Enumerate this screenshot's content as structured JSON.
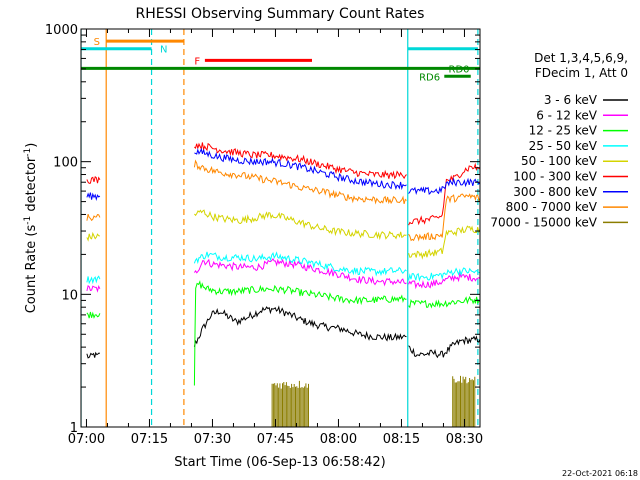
{
  "chart_data": {
    "type": "line",
    "title": "RHESSI Observing Summary Count Rates",
    "xlabel": "Start Time (06-Sep-13 06:58:42)",
    "ylabel_main": "Count Rate (s",
    "ylabel_sup1": "-1",
    "ylabel_mid": " detector",
    "ylabel_sup2": "-1",
    "ylabel_end": ")",
    "y_scale": "log",
    "ylim": [
      1,
      1000
    ],
    "xlim_minutes": [
      0,
      95
    ],
    "x_ticks": [
      {
        "m": 1.3,
        "label": "07:00"
      },
      {
        "m": 16.3,
        "label": "07:15"
      },
      {
        "m": 31.3,
        "label": "07:30"
      },
      {
        "m": 46.3,
        "label": "07:45"
      },
      {
        "m": 61.3,
        "label": "08:00"
      },
      {
        "m": 76.3,
        "label": "08:15"
      },
      {
        "m": 91.3,
        "label": "08:30"
      }
    ],
    "y_ticks": [
      {
        "v": 1,
        "label": "1"
      },
      {
        "v": 10,
        "label": "10"
      },
      {
        "v": 100,
        "label": "100"
      },
      {
        "v": 1000,
        "label": "1000"
      }
    ],
    "legend": {
      "header1": "Det 1,3,4,5,6,9,",
      "header2": "FDecim 1, Att 0"
    },
    "footer_date": "22-Oct-2021 06:18",
    "night_vlines": [
      {
        "m": 0,
        "color": "#00d8d8",
        "style": "solid"
      },
      {
        "m": 6,
        "color": "#ff8800",
        "style": "solid"
      },
      {
        "m": 16.8,
        "color": "#00d8d8",
        "style": "dash"
      },
      {
        "m": 24.5,
        "color": "#ff8800",
        "style": "dash"
      },
      {
        "m": 77.8,
        "color": "#00d8d8",
        "style": "solid"
      },
      {
        "m": 94.5,
        "color": "#00d8d8",
        "style": "dash"
      }
    ],
    "flags": [
      {
        "label": "S",
        "color": "#ff8800",
        "m0": 6,
        "m1": 24.5,
        "y": 810,
        "label_m": 3.0
      },
      {
        "label": "N",
        "color": "#00d8d8",
        "m0": 0,
        "m1": 16.8,
        "y": 710,
        "label_m": 18.8
      },
      {
        "label": "F",
        "color": "#ff0000",
        "m0": 29.5,
        "m1": 55.0,
        "y": 580,
        "label_m": 27.0
      },
      {
        "label": "RD0",
        "color": "#008800",
        "m0": 0,
        "m1": 95,
        "y": 505,
        "label_m": 87.5
      },
      {
        "label": "RD6",
        "color": "#008800",
        "m0": 86.5,
        "m1": 92.8,
        "y": 440,
        "label_m": 80.5
      }
    ],
    "flag_cyan_right": {
      "color": "#00d8d8",
      "m0": 77.8,
      "m1": 94.5,
      "y": 710
    },
    "series": [
      {
        "name": "3 - 6 keV",
        "color": "#000000",
        "segments": [
          [
            [
              1.4,
              3.5
            ],
            [
              2,
              3.3
            ],
            [
              3,
              3.5
            ],
            [
              4,
              3.4
            ],
            [
              4.5,
              3.6
            ]
          ],
          [
            [
              27,
              4.1
            ],
            [
              29,
              5.5
            ],
            [
              31,
              7.0
            ],
            [
              33,
              7.5
            ],
            [
              35,
              6.8
            ],
            [
              37,
              6.2
            ],
            [
              40,
              6.8
            ],
            [
              43,
              7.6
            ],
            [
              46,
              7.8
            ],
            [
              49,
              7.2
            ],
            [
              52,
              6.5
            ],
            [
              55,
              6.0
            ],
            [
              58,
              5.7
            ],
            [
              62,
              5.5
            ],
            [
              66,
              5.0
            ],
            [
              70,
              4.8
            ],
            [
              74,
              4.7
            ],
            [
              77.5,
              4.8
            ]
          ],
          [
            [
              78,
              4.0
            ],
            [
              80,
              3.5
            ],
            [
              84,
              3.6
            ],
            [
              86,
              3.5
            ],
            [
              89,
              4.2
            ],
            [
              91,
              4.5
            ],
            [
              93,
              4.5
            ],
            [
              95,
              4.6
            ]
          ]
        ]
      },
      {
        "name": "6 - 12 keV",
        "color": "#ff00ff",
        "segments": [
          [
            [
              1.4,
              11
            ],
            [
              4.5,
              11
            ]
          ],
          [
            [
              27,
              14
            ],
            [
              29,
              18
            ],
            [
              31,
              17
            ],
            [
              34,
              16.5
            ],
            [
              38,
              16
            ],
            [
              42,
              16
            ],
            [
              46,
              17.5
            ],
            [
              50,
              17
            ],
            [
              54,
              16
            ],
            [
              58,
              15
            ],
            [
              62,
              14
            ],
            [
              66,
              13
            ],
            [
              70,
              12.5
            ],
            [
              74,
              12.5
            ],
            [
              77.5,
              12.2
            ]
          ],
          [
            [
              78,
              12.0
            ],
            [
              80,
              11.8
            ],
            [
              84,
              12
            ],
            [
              86,
              12.5
            ],
            [
              89,
              13.5
            ],
            [
              92,
              13.5
            ],
            [
              95,
              13.2
            ]
          ]
        ]
      },
      {
        "name": "12 - 25 keV",
        "color": "#00ff00",
        "segments": [
          [
            [
              1.4,
              7.0
            ],
            [
              4.5,
              7.2
            ]
          ],
          [
            [
              27,
              2.1
            ],
            [
              27.3,
              11
            ],
            [
              28,
              12
            ],
            [
              30,
              11
            ],
            [
              33,
              10.5
            ],
            [
              37,
              10.5
            ],
            [
              41,
              10.8
            ],
            [
              45,
              11
            ],
            [
              49,
              10.8
            ],
            [
              53,
              10.2
            ],
            [
              57,
              9.8
            ],
            [
              61,
              9.3
            ],
            [
              65,
              9.0
            ],
            [
              69,
              9.0
            ],
            [
              73,
              9.2
            ],
            [
              77.5,
              9.2
            ]
          ],
          [
            [
              78,
              8.5
            ],
            [
              82,
              8.5
            ],
            [
              86,
              8.5
            ],
            [
              89,
              8.8
            ],
            [
              92,
              9.0
            ],
            [
              95,
              9.1
            ]
          ]
        ]
      },
      {
        "name": "25 - 50 keV",
        "color": "#00ffff",
        "segments": [
          [
            [
              1.4,
              13
            ],
            [
              4.5,
              13
            ]
          ],
          [
            [
              27,
              18
            ],
            [
              30,
              20
            ],
            [
              34,
              19
            ],
            [
              38,
              19
            ],
            [
              42,
              18.5
            ],
            [
              46,
              19.5
            ],
            [
              50,
              18.5
            ],
            [
              54,
              17.5
            ],
            [
              58,
              16.5
            ],
            [
              62,
              15.5
            ],
            [
              66,
              15
            ],
            [
              70,
              14.8
            ],
            [
              74,
              15
            ],
            [
              77.5,
              15
            ]
          ],
          [
            [
              78,
              13.5
            ],
            [
              82,
              13.5
            ],
            [
              86,
              14
            ],
            [
              89,
              15
            ],
            [
              92,
              15
            ],
            [
              95,
              14.5
            ]
          ]
        ]
      },
      {
        "name": "50 - 100 keV",
        "color": "#d4d400",
        "segments": [
          [
            [
              1.4,
              27
            ],
            [
              4.5,
              27.5
            ]
          ],
          [
            [
              27,
              40
            ],
            [
              29,
              42
            ],
            [
              31,
              39
            ],
            [
              34,
              37
            ],
            [
              38,
              36
            ],
            [
              42,
              38
            ],
            [
              45,
              40
            ],
            [
              48,
              38
            ],
            [
              52,
              35
            ],
            [
              56,
              32
            ],
            [
              60,
              30
            ],
            [
              64,
              29
            ],
            [
              68,
              28.5
            ],
            [
              72,
              28
            ],
            [
              75,
              28
            ],
            [
              77.5,
              28
            ]
          ],
          [
            [
              78,
              20
            ],
            [
              81,
              20
            ],
            [
              84,
              20.5
            ],
            [
              86,
              21
            ],
            [
              87,
              29
            ],
            [
              89,
              29.5
            ],
            [
              92,
              31
            ],
            [
              95,
              31
            ]
          ]
        ]
      },
      {
        "name": "100 - 300 keV",
        "color": "#ff0000",
        "segments": [
          [
            [
              1.4,
              73
            ],
            [
              4.5,
              73
            ]
          ],
          [
            [
              27,
              135
            ],
            [
              30,
              130
            ],
            [
              33,
              123
            ],
            [
              37,
              117
            ],
            [
              41,
              112
            ],
            [
              45,
              112
            ],
            [
              49,
              108
            ],
            [
              53,
              103
            ],
            [
              57,
              95
            ],
            [
              61,
              88
            ],
            [
              65,
              83
            ],
            [
              69,
              80
            ],
            [
              73,
              79
            ],
            [
              77.5,
              80
            ]
          ],
          [
            [
              78,
              35
            ],
            [
              81,
              36
            ],
            [
              84,
              37
            ],
            [
              86,
              39
            ],
            [
              87,
              72
            ],
            [
              89,
              75
            ],
            [
              91,
              85
            ],
            [
              93,
              92
            ],
            [
              95,
              88
            ]
          ]
        ]
      },
      {
        "name": "300 - 800 keV",
        "color": "#0000ff",
        "segments": [
          [
            [
              1.4,
              55
            ],
            [
              4.5,
              55
            ]
          ],
          [
            [
              27,
              120
            ],
            [
              30,
              115
            ],
            [
              33,
              108
            ],
            [
              37,
              103
            ],
            [
              41,
              100
            ],
            [
              45,
              100
            ],
            [
              49,
              96
            ],
            [
              53,
              90
            ],
            [
              57,
              83
            ],
            [
              61,
              77
            ],
            [
              65,
              72
            ],
            [
              69,
              69
            ],
            [
              73,
              67
            ],
            [
              77.5,
              67
            ]
          ],
          [
            [
              78,
              60
            ],
            [
              81,
              60
            ],
            [
              84,
              60
            ],
            [
              86,
              61
            ],
            [
              87,
              68
            ],
            [
              89,
              70
            ],
            [
              91,
              70
            ],
            [
              93,
              70
            ],
            [
              95,
              69
            ]
          ]
        ]
      },
      {
        "name": "800 - 7000 keV",
        "color": "#ff8800",
        "segments": [
          [
            [
              1.4,
              38
            ],
            [
              4.5,
              38
            ]
          ],
          [
            [
              27,
              96
            ],
            [
              30,
              88
            ],
            [
              33,
              83
            ],
            [
              37,
              80
            ],
            [
              41,
              76
            ],
            [
              45,
              72
            ],
            [
              49,
              68
            ],
            [
              53,
              63
            ],
            [
              57,
              60
            ],
            [
              61,
              56
            ],
            [
              65,
              53
            ],
            [
              69,
              52
            ],
            [
              73,
              51
            ],
            [
              77.5,
              51
            ]
          ],
          [
            [
              78,
              27
            ],
            [
              81,
              27
            ],
            [
              84,
              27.5
            ],
            [
              86,
              28
            ],
            [
              87,
              52
            ],
            [
              89,
              53
            ],
            [
              92,
              55
            ],
            [
              95,
              53
            ]
          ]
        ]
      },
      {
        "name": "7000 - 15000 keV",
        "color": "#8b7d00",
        "segments": [],
        "blocks": [
          [
            45.5,
            54.2,
            2.1
          ],
          [
            88.5,
            94.0,
            2.3
          ]
        ]
      }
    ]
  }
}
